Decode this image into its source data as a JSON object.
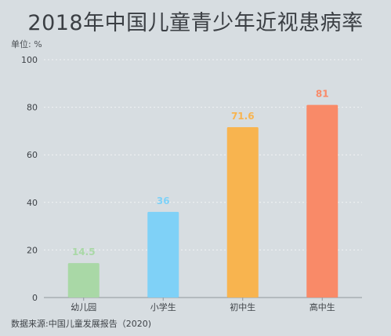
{
  "title": "2018年中国儿童青少年近视患病率",
  "unit_label": "单位: %",
  "source": "数据来源:中国儿童发展报告（2020)",
  "chart_data": {
    "type": "bar",
    "categories": [
      "幼儿园",
      "小学生",
      "初中生",
      "高中生"
    ],
    "values": [
      14.5,
      36,
      71.6,
      81
    ],
    "value_labels": [
      "14.5",
      "36",
      "71.6",
      "81"
    ],
    "colors": [
      "#a9d8a6",
      "#7fd1f7",
      "#f8b44f",
      "#f98a68"
    ],
    "ylim": [
      0,
      100
    ],
    "yticks": [
      0,
      20,
      40,
      60,
      80,
      100
    ],
    "grid": true,
    "legend": "none"
  }
}
